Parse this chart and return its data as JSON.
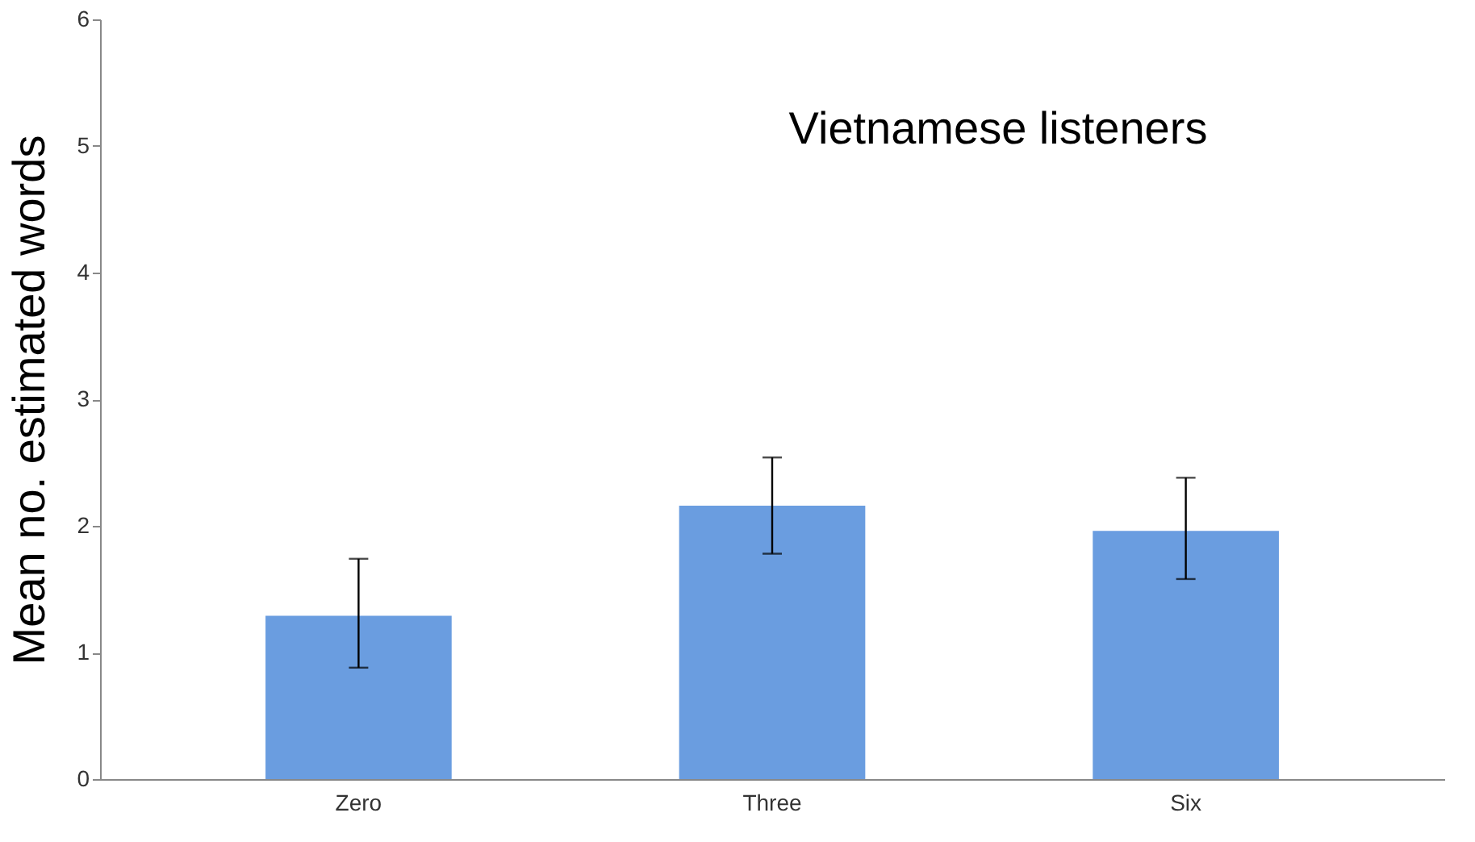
{
  "chart_data": {
    "type": "bar",
    "title": "Vietnamese listeners",
    "ylabel": "Mean no. estimated words",
    "categories": [
      "Zero",
      "Three",
      "Six"
    ],
    "values": [
      1.29,
      2.16,
      1.96
    ],
    "errors": [
      [
        0.88,
        1.74
      ],
      [
        1.78,
        2.54
      ],
      [
        1.58,
        2.38
      ]
    ],
    "color": "#6a9de0",
    "ylim": [
      0,
      6
    ],
    "yticks": [
      0,
      1,
      2,
      3,
      4,
      5,
      6
    ],
    "grid": false
  }
}
